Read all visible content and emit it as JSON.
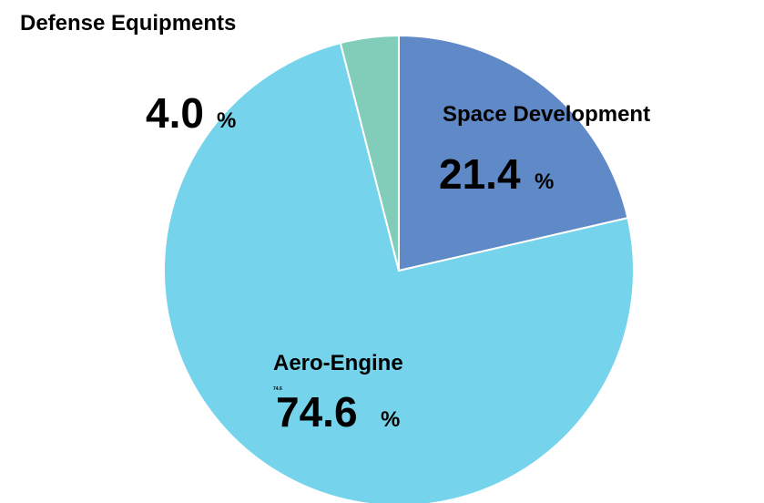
{
  "chart_data": {
    "type": "pie",
    "categories": [
      "Space Development",
      "Aero-Engine",
      "Defense Equipments"
    ],
    "values": [
      21.4,
      74.6,
      4.0
    ],
    "value_labels": [
      "21.4",
      "74.6",
      "4.0"
    ],
    "unit": "%",
    "colors": [
      "#5f8ac7",
      "#76d3ec",
      "#82cdb9"
    ]
  }
}
